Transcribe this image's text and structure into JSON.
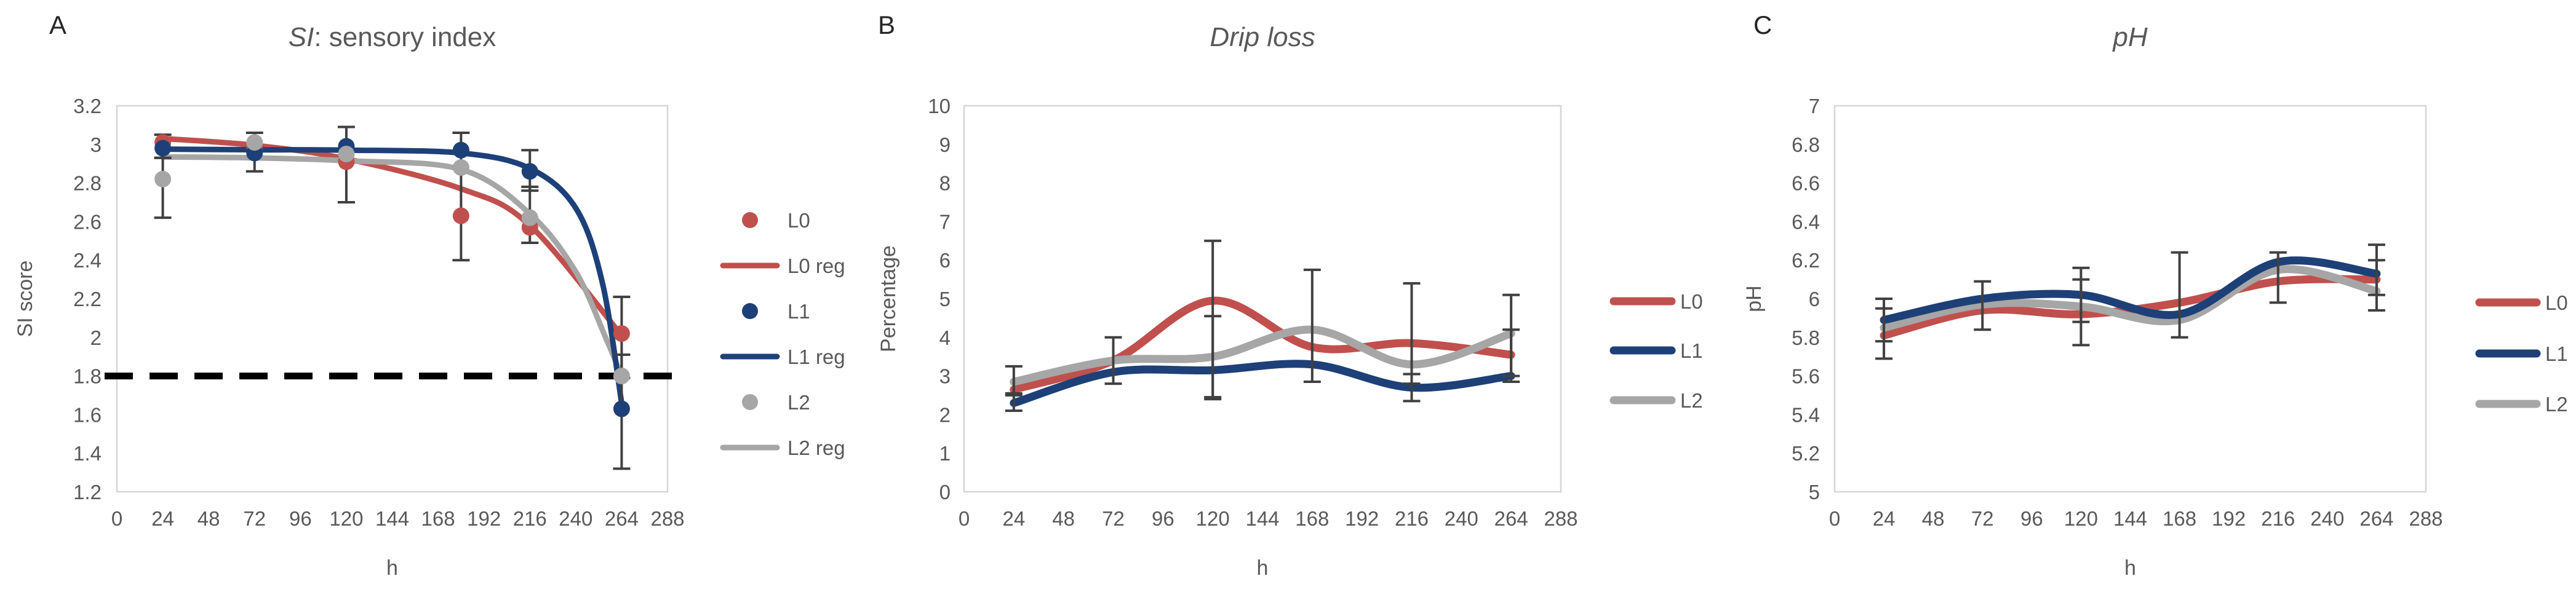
{
  "figure": {
    "background": "#ffffff",
    "border_color": "#d6d6d6",
    "tick_text_color": "#595959",
    "title_text_color": "#595959",
    "panel_letter_color": "#262626",
    "error_bar_color": "#404040",
    "threshold_color": "#000000"
  },
  "colors": {
    "L0": "#C0504D",
    "L1": "#1E4078",
    "L2": "#A6A6A6"
  },
  "chart_data": [
    {
      "type": "scatter",
      "panel_label": "A",
      "title_italic": "SI",
      "title_rest": ": sensory index",
      "xlabel": "h",
      "ylabel": "SI score",
      "xlim": [
        0,
        288
      ],
      "ylim": [
        1.2,
        3.2
      ],
      "x_ticks": [
        "0",
        "24",
        "48",
        "72",
        "96",
        "120",
        "144",
        "168",
        "192",
        "216",
        "240",
        "264",
        "288"
      ],
      "y_ticks": [
        "1.2",
        "1.4",
        "1.6",
        "1.8",
        "2",
        "2.2",
        "2.4",
        "2.6",
        "2.8",
        "3",
        "3.2"
      ],
      "grid": false,
      "legend_position": "right",
      "threshold_y": 1.8,
      "x": [
        24,
        72,
        120,
        180,
        216,
        264
      ],
      "series": [
        {
          "name": "L0",
          "kind": "scatter",
          "color": "L0",
          "z": 1,
          "values": [
            3.01,
            2.99,
            2.91,
            2.63,
            2.57,
            2.02
          ]
        },
        {
          "name": "L0 reg",
          "kind": "curve",
          "color": "L0",
          "z": 1,
          "points": [
            [
              24,
              3.03
            ],
            [
              72,
              2.995
            ],
            [
              120,
              2.925
            ],
            [
              180,
              2.77
            ],
            [
              216,
              2.58
            ],
            [
              264,
              2.01
            ]
          ]
        },
        {
          "name": "L1",
          "kind": "scatter",
          "color": "L1",
          "z": 2,
          "values": [
            2.98,
            2.955,
            2.99,
            2.97,
            2.86,
            1.63
          ]
        },
        {
          "name": "L1 reg",
          "kind": "curve",
          "color": "L1",
          "z": 3,
          "points": [
            [
              24,
              2.975
            ],
            [
              72,
              2.972
            ],
            [
              120,
              2.97
            ],
            [
              180,
              2.955
            ],
            [
              216,
              2.875
            ],
            [
              240,
              2.67
            ],
            [
              254,
              2.28
            ],
            [
              264,
              1.66
            ]
          ]
        },
        {
          "name": "L2",
          "kind": "scatter",
          "color": "L2",
          "z": 3,
          "values": [
            2.82,
            3.01,
            2.95,
            2.88,
            2.62,
            1.8
          ]
        },
        {
          "name": "L2 reg",
          "kind": "curve",
          "color": "L2",
          "z": 2,
          "points": [
            [
              24,
              2.935
            ],
            [
              72,
              2.93
            ],
            [
              120,
              2.915
            ],
            [
              180,
              2.87
            ],
            [
              216,
              2.64
            ],
            [
              240,
              2.34
            ],
            [
              256,
              1.99
            ],
            [
              264,
              1.8
            ]
          ]
        }
      ],
      "error_bars": [
        [
          24,
          2.93,
          3.05
        ],
        [
          24,
          2.62,
          2.93
        ],
        [
          72,
          2.86,
          3.06
        ],
        [
          120,
          2.7,
          3.09
        ],
        [
          180,
          2.4,
          3.06
        ],
        [
          216,
          2.76,
          2.97
        ],
        [
          216,
          2.49,
          2.78
        ],
        [
          264,
          1.79,
          2.21
        ],
        [
          264,
          1.32,
          1.91
        ]
      ],
      "legend": [
        {
          "label": "L0",
          "swatch": "dot",
          "color": "L0"
        },
        {
          "label": "L0 reg",
          "swatch": "line",
          "color": "L0"
        },
        {
          "label": "L1",
          "swatch": "dot",
          "color": "L1"
        },
        {
          "label": "L1 reg",
          "swatch": "line",
          "color": "L1"
        },
        {
          "label": "L2",
          "swatch": "dot",
          "color": "L2"
        },
        {
          "label": "L2 reg",
          "swatch": "line",
          "color": "L2"
        }
      ]
    },
    {
      "type": "line",
      "panel_label": "B",
      "title_italic": "Drip loss",
      "title_rest": "",
      "xlabel": "h",
      "ylabel": "Percentage",
      "xlim": [
        0,
        288
      ],
      "ylim": [
        0,
        10
      ],
      "x_ticks": [
        "0",
        "24",
        "48",
        "72",
        "96",
        "120",
        "144",
        "168",
        "192",
        "216",
        "240",
        "264",
        "288"
      ],
      "y_ticks": [
        "0",
        "1",
        "2",
        "3",
        "4",
        "5",
        "6",
        "7",
        "8",
        "9",
        "10"
      ],
      "grid": false,
      "legend_position": "right",
      "x": [
        24,
        72,
        120,
        168,
        216,
        264
      ],
      "series": [
        {
          "name": "L0",
          "kind": "line",
          "color": "L0",
          "z": 1,
          "values": [
            2.65,
            3.4,
            4.95,
            3.75,
            3.85,
            3.55
          ]
        },
        {
          "name": "L1",
          "kind": "line",
          "color": "L1",
          "z": 3,
          "values": [
            2.3,
            3.1,
            3.15,
            3.3,
            2.7,
            3.0
          ]
        },
        {
          "name": "L2",
          "kind": "line",
          "color": "L2",
          "z": 2,
          "values": [
            2.85,
            3.4,
            3.5,
            4.2,
            3.3,
            4.1
          ]
        }
      ],
      "error_bars": [
        [
          24,
          2.5,
          3.25
        ],
        [
          24,
          2.1,
          2.55
        ],
        [
          72,
          2.8,
          4.0
        ],
        [
          120,
          2.4,
          6.5
        ],
        [
          120,
          2.45,
          4.55
        ],
        [
          168,
          2.85,
          5.75
        ],
        [
          216,
          2.8,
          5.4
        ],
        [
          216,
          2.35,
          3.05
        ],
        [
          264,
          3.0,
          5.1
        ],
        [
          264,
          2.85,
          4.2
        ]
      ],
      "legend": [
        {
          "label": "L0",
          "swatch": "line",
          "color": "L0"
        },
        {
          "label": "L1",
          "swatch": "line",
          "color": "L1"
        },
        {
          "label": "L2",
          "swatch": "line",
          "color": "L2"
        }
      ]
    },
    {
      "type": "line",
      "panel_label": "C",
      "title_italic": "pH",
      "title_rest": "",
      "xlabel": "h",
      "ylabel": "pH",
      "xlim": [
        0,
        288
      ],
      "ylim": [
        5,
        7
      ],
      "x_ticks": [
        "0",
        "24",
        "48",
        "72",
        "96",
        "120",
        "144",
        "168",
        "192",
        "216",
        "240",
        "264",
        "288"
      ],
      "y_ticks": [
        "5",
        "5.2",
        "5.4",
        "5.6",
        "5.8",
        "6",
        "6.2",
        "6.4",
        "6.6",
        "6.8",
        "7"
      ],
      "grid": false,
      "legend_position": "right",
      "x": [
        24,
        72,
        120,
        168,
        216,
        264
      ],
      "series": [
        {
          "name": "L0",
          "kind": "line",
          "color": "L0",
          "z": 1,
          "values": [
            5.81,
            5.94,
            5.92,
            5.98,
            6.09,
            6.1
          ]
        },
        {
          "name": "L1",
          "kind": "line",
          "color": "L1",
          "z": 3,
          "values": [
            5.89,
            6.0,
            6.02,
            5.92,
            6.19,
            6.13
          ]
        },
        {
          "name": "L2",
          "kind": "line",
          "color": "L2",
          "z": 2,
          "values": [
            5.85,
            5.97,
            5.96,
            5.89,
            6.15,
            6.04
          ]
        }
      ],
      "error_bars": [
        [
          24,
          5.78,
          6.0
        ],
        [
          24,
          5.69,
          5.95
        ],
        [
          72,
          5.84,
          6.09
        ],
        [
          120,
          5.76,
          6.16
        ],
        [
          120,
          5.88,
          6.1
        ],
        [
          168,
          5.8,
          6.24
        ],
        [
          216,
          5.98,
          6.24
        ],
        [
          264,
          5.94,
          6.28
        ],
        [
          264,
          6.02,
          6.2
        ]
      ],
      "legend": [
        {
          "label": "L0",
          "swatch": "line",
          "color": "L0"
        },
        {
          "label": "L1",
          "swatch": "line",
          "color": "L1"
        },
        {
          "label": "L2",
          "swatch": "line",
          "color": "L2"
        }
      ]
    }
  ]
}
